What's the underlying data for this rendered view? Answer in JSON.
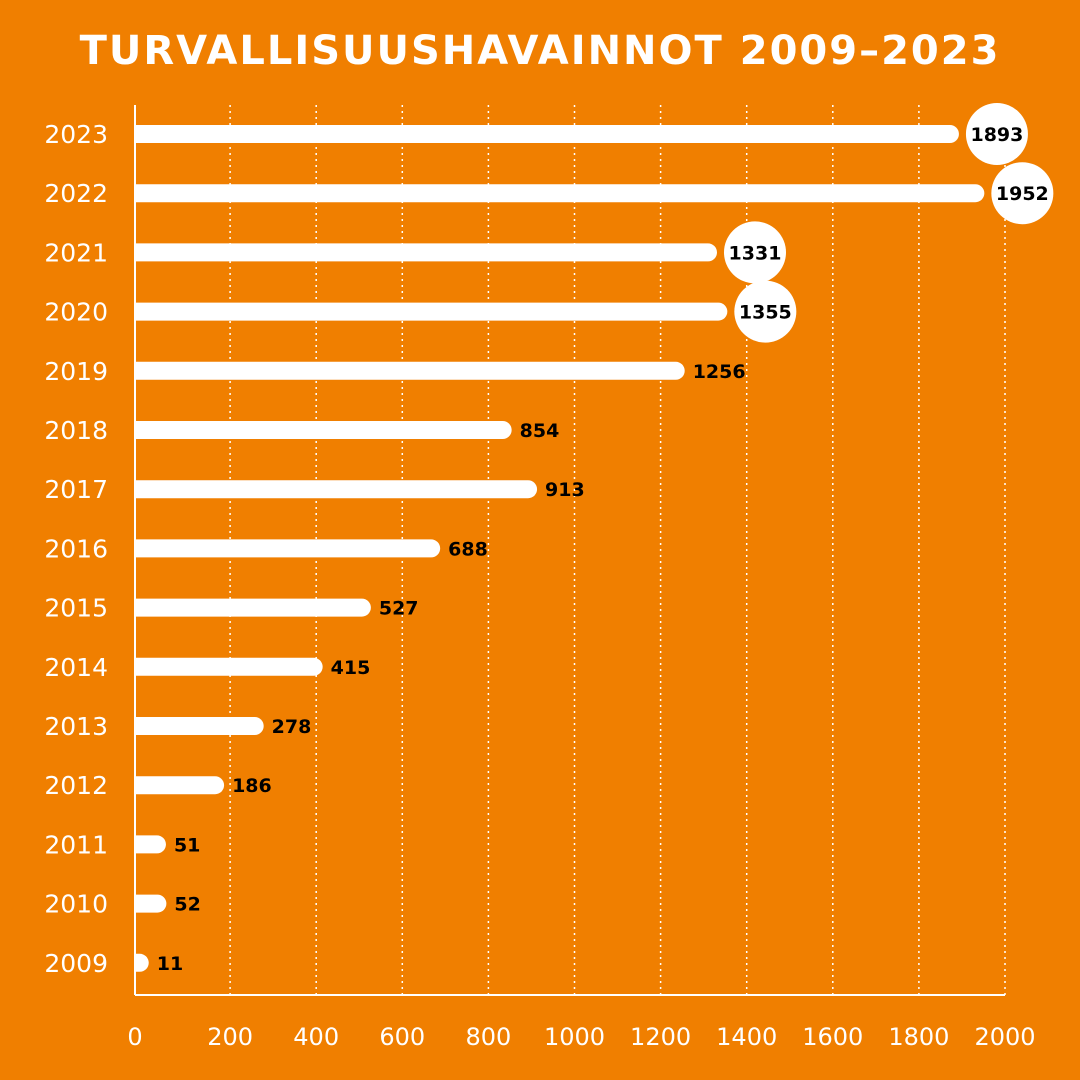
{
  "chart_data": {
    "type": "bar",
    "orientation": "horizontal",
    "title": "TURVALLISUUSHAVAINNOT 2009–2023",
    "categories": [
      "2023",
      "2022",
      "2021",
      "2020",
      "2019",
      "2018",
      "2017",
      "2016",
      "2015",
      "2014",
      "2013",
      "2012",
      "2011",
      "2010",
      "2009"
    ],
    "values": [
      1893,
      1952,
      1331,
      1355,
      1256,
      854,
      913,
      688,
      527,
      415,
      278,
      186,
      51,
      52,
      11
    ],
    "highlighted": [
      "2023",
      "2022",
      "2021",
      "2020"
    ],
    "xlim": [
      0,
      2000
    ],
    "xticks": [
      0,
      200,
      400,
      600,
      800,
      1000,
      1200,
      1400,
      1600,
      1800,
      2000
    ],
    "grid": "vertical dotted",
    "colors": {
      "background": "#F07F00",
      "bar": "#FFFFFF",
      "label": "#000000",
      "text": "#FFFFFF"
    }
  }
}
